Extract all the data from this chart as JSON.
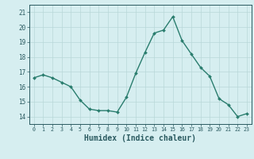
{
  "x": [
    0,
    1,
    2,
    3,
    4,
    5,
    6,
    7,
    8,
    9,
    10,
    11,
    12,
    13,
    14,
    15,
    16,
    17,
    18,
    19,
    20,
    21,
    22,
    23
  ],
  "y": [
    16.6,
    16.8,
    16.6,
    16.3,
    16.0,
    15.1,
    14.5,
    14.4,
    14.4,
    14.3,
    15.3,
    16.9,
    18.3,
    19.6,
    19.8,
    20.7,
    19.1,
    18.2,
    17.3,
    16.7,
    15.2,
    14.8,
    14.0,
    14.2
  ],
  "line_color": "#2a7d6e",
  "marker": "D",
  "marker_size": 2.0,
  "line_width": 1.0,
  "bg_color": "#d6eef0",
  "grid_color": "#b8d8d8",
  "xlabel": "Humidex (Indice chaleur)",
  "xlabel_fontsize": 7,
  "tick_color": "#2a5a60",
  "yticks": [
    14,
    15,
    16,
    17,
    18,
    19,
    20,
    21
  ],
  "ylim": [
    13.5,
    21.5
  ],
  "xlim": [
    -0.5,
    23.5
  ],
  "xticks": [
    0,
    1,
    2,
    3,
    4,
    5,
    6,
    7,
    8,
    9,
    10,
    11,
    12,
    13,
    14,
    15,
    16,
    17,
    18,
    19,
    20,
    21,
    22,
    23
  ]
}
